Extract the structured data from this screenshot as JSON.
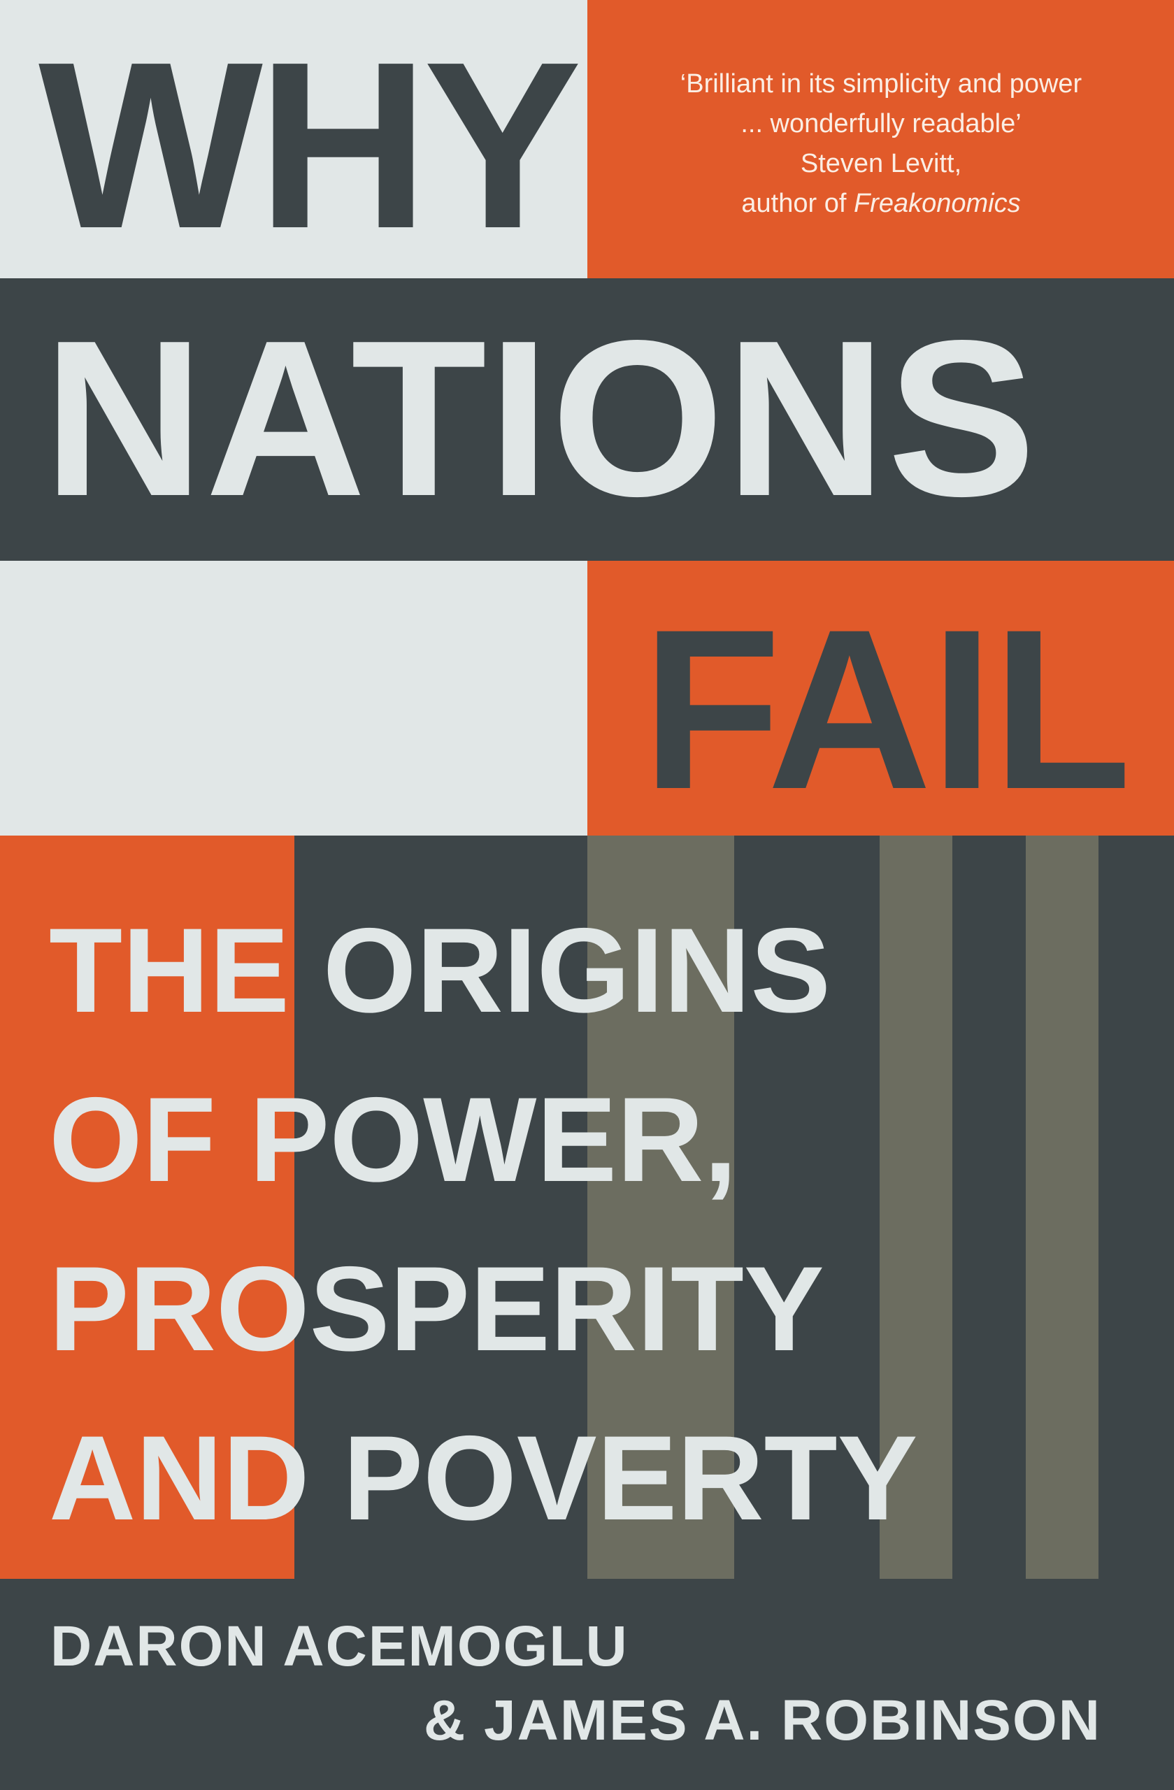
{
  "cover": {
    "title": {
      "line1": "WHY",
      "line2": "NATIONS",
      "line3": "FAIL"
    },
    "subtitle": {
      "lines": [
        "THE ORIGINS",
        "OF POWER,",
        "PROSPERITY",
        "AND POVERTY"
      ]
    },
    "quote": {
      "line1": "‘Brilliant in its simplicity and power",
      "line2": "... wonderfully readable’",
      "attribution": "Steven Levitt,",
      "source_prefix": "author of ",
      "source_title": "Freakonomics"
    },
    "authors": {
      "line1": "DARON ACEMOGLU",
      "line2": "& JAMES A. ROBINSON"
    },
    "colors": {
      "orange": "#e15a2a",
      "dark_slate": "#3d4548",
      "light_grey": "#e1e7e7",
      "olive_grey": "#6c6d60"
    }
  }
}
